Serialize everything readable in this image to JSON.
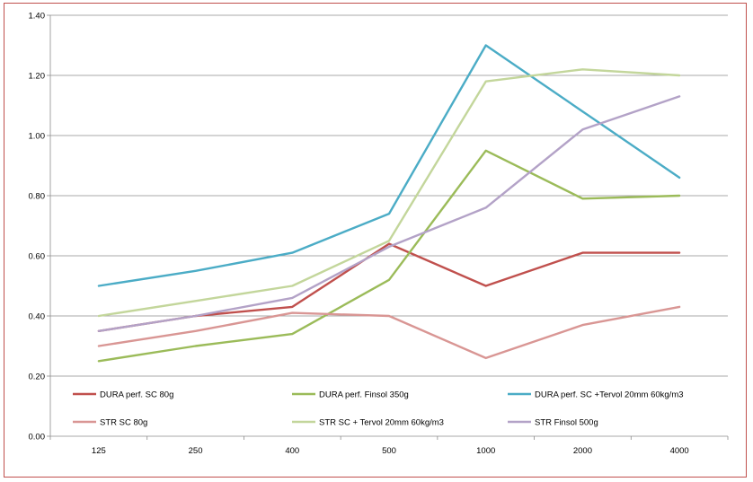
{
  "chart_data": {
    "type": "line",
    "title": "",
    "xlabel": "",
    "ylabel": "",
    "categories": [
      "125",
      "250",
      "400",
      "500",
      "1000",
      "2000",
      "4000"
    ],
    "ylim": [
      0,
      1.4
    ],
    "yticks": [
      "0.00",
      "0.20",
      "0.40",
      "0.60",
      "0.80",
      "1.00",
      "1.20",
      "1.40"
    ],
    "grid": true,
    "legend_position": "bottom-inside",
    "series": [
      {
        "name": "DURA perf. SC 80g",
        "color": "#c0504d",
        "values": [
          0.35,
          0.4,
          0.43,
          0.64,
          0.5,
          0.61,
          0.61
        ]
      },
      {
        "name": "DURA perf. Finsol 350g",
        "color": "#9bbb59",
        "values": [
          0.25,
          0.3,
          0.34,
          0.52,
          0.95,
          0.79,
          0.8
        ]
      },
      {
        "name": "DURA perf. SC +Tervol 20mm 60kg/m3",
        "color": "#4bacc6",
        "values": [
          0.5,
          0.55,
          0.61,
          0.74,
          1.3,
          1.08,
          0.86
        ]
      },
      {
        "name": "STR SC 80g",
        "color": "#d99694",
        "values": [
          0.3,
          0.35,
          0.41,
          0.4,
          0.26,
          0.37,
          0.43
        ]
      },
      {
        "name": "STR SC + Tervol 20mm 60kg/m3",
        "color": "#c3d69b",
        "values": [
          0.4,
          0.45,
          0.5,
          0.65,
          1.18,
          1.22,
          1.2
        ]
      },
      {
        "name": "STR Finsol 500g",
        "color": "#b3a2c7",
        "values": [
          0.35,
          0.4,
          0.46,
          0.63,
          0.76,
          1.02,
          1.13
        ]
      }
    ]
  }
}
